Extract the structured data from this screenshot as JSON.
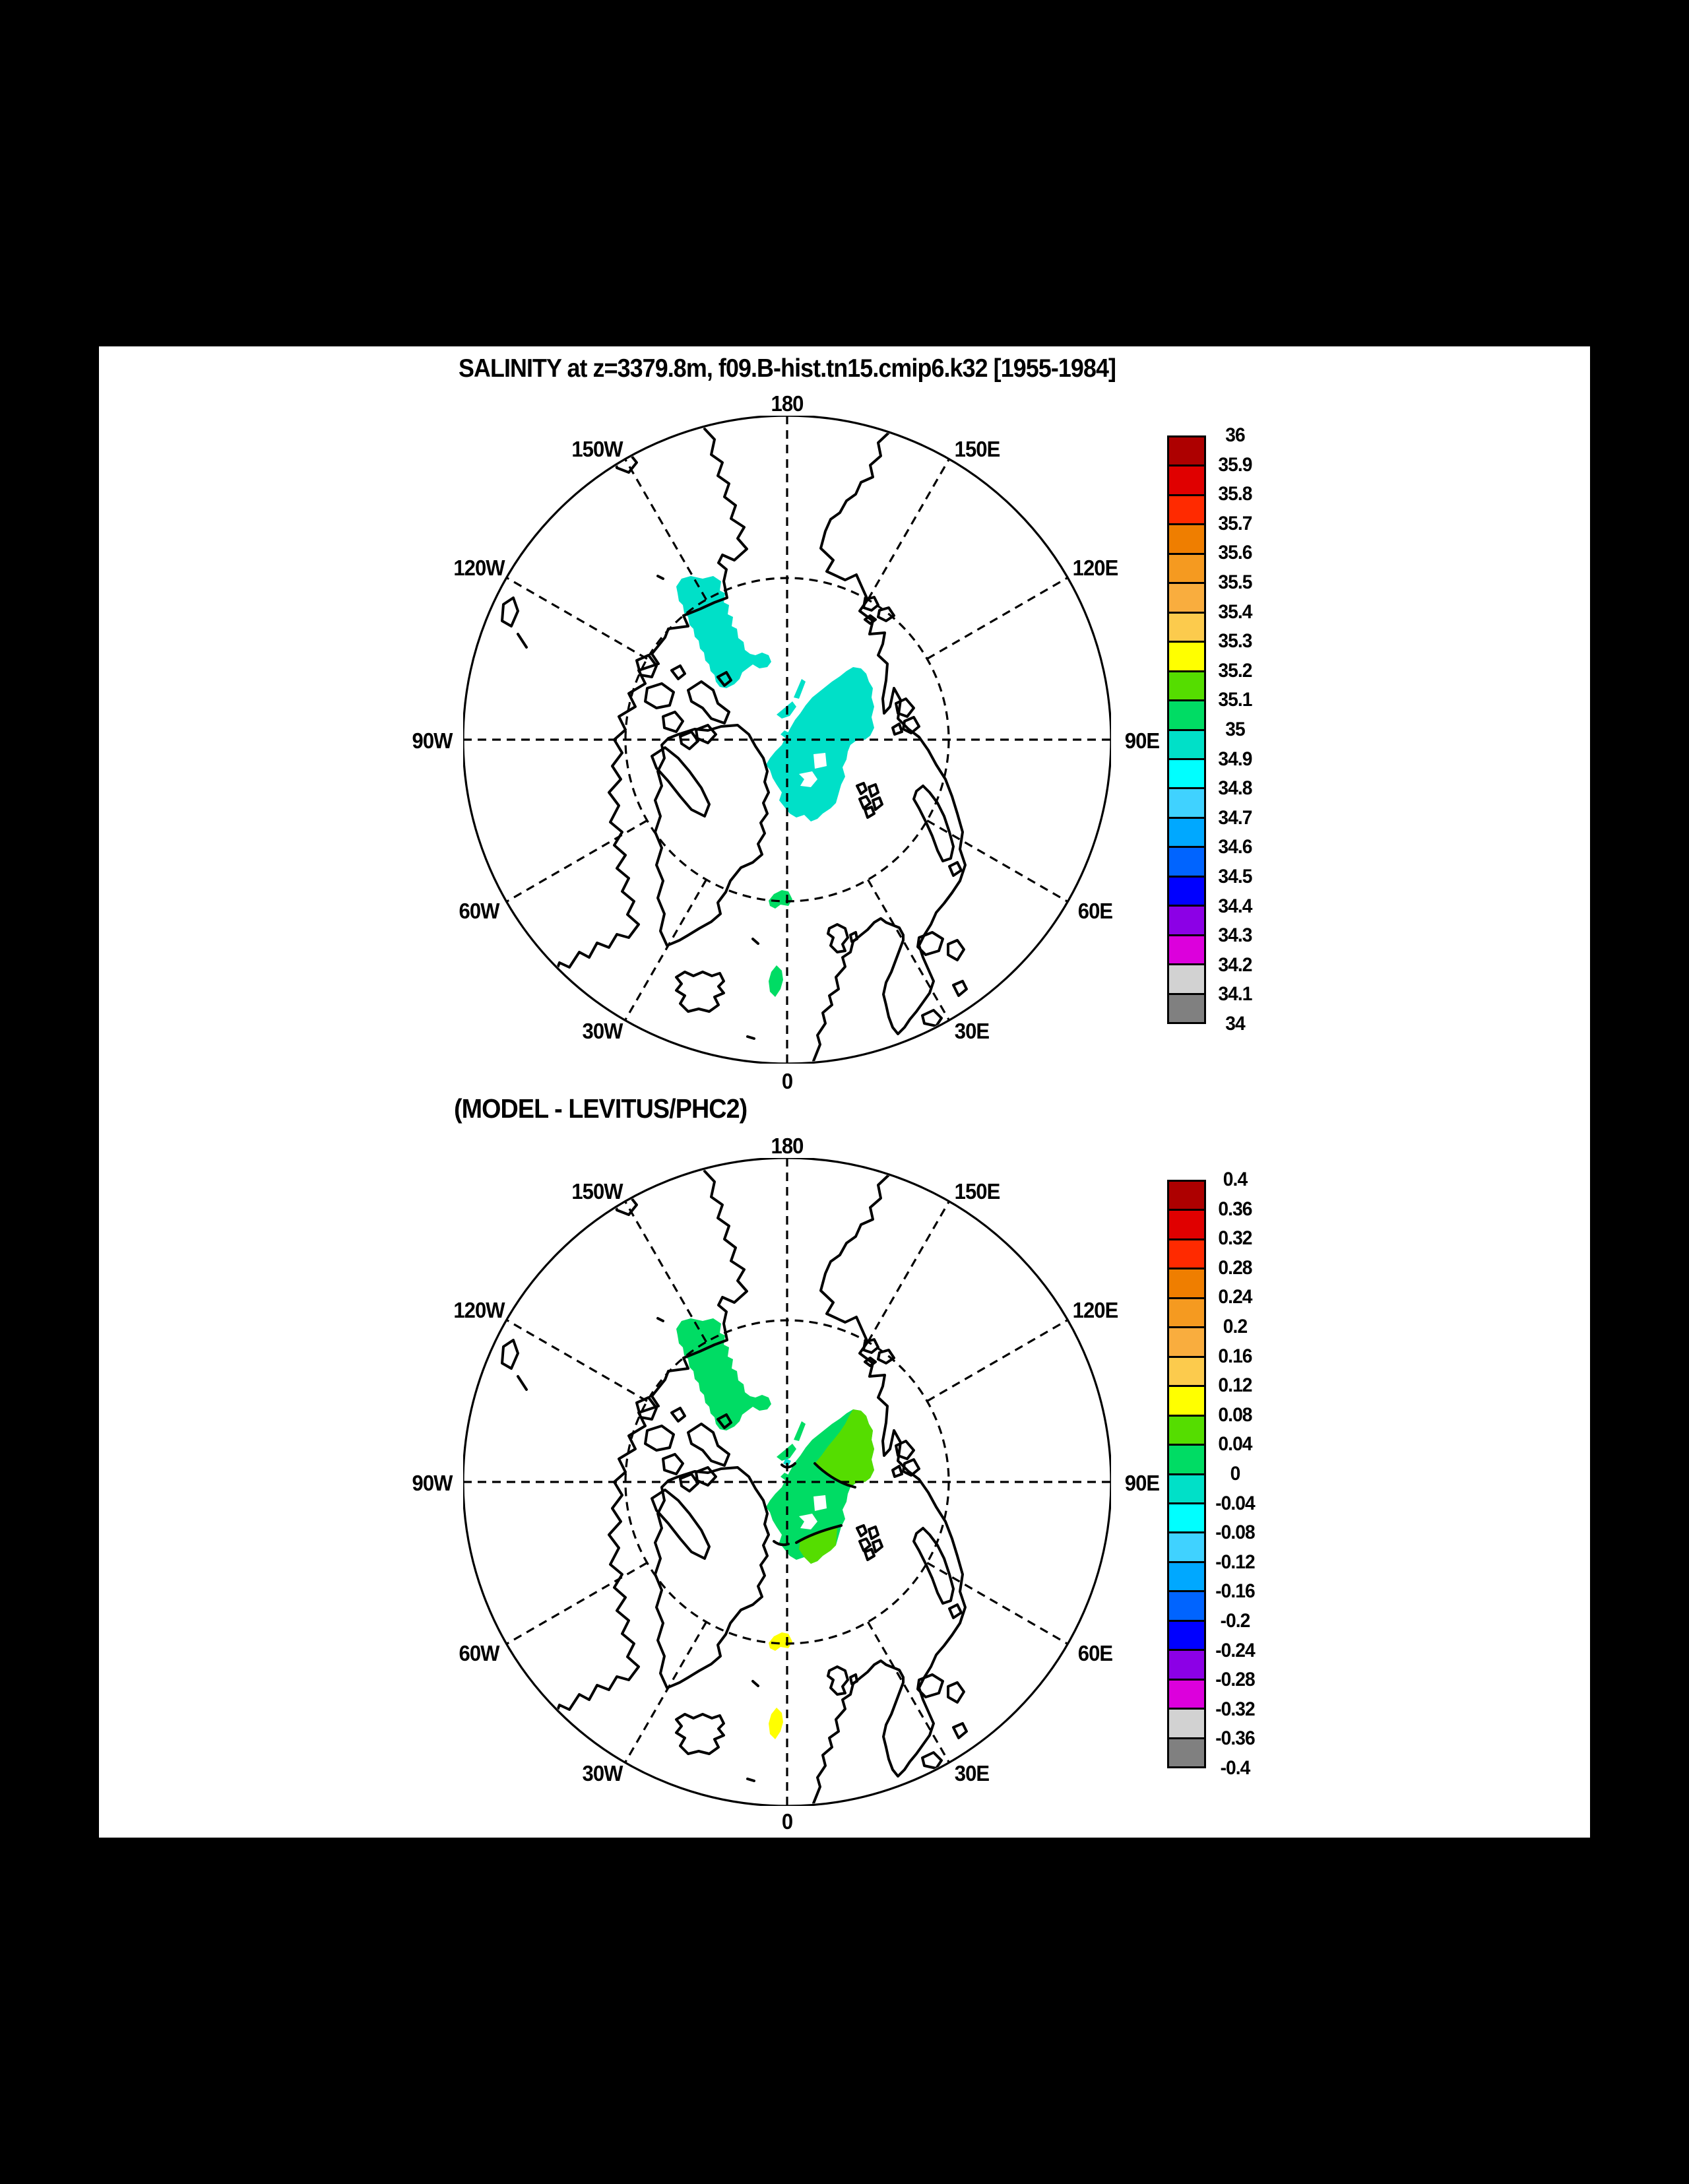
{
  "page": {
    "background": "#000000",
    "panel_background": "#ffffff"
  },
  "palette": {
    "turquoise": "#00e0c8",
    "spring_green": "#00dc64",
    "yellow_green": "#55dd00",
    "yellow": "#ffff00",
    "contour_black": "#000000"
  },
  "panels": [
    {
      "title": "SALINITY at z=3379.8m, f09.B-hist.tn15.cmip6.k32 [1955-1984]",
      "meridians": {
        "m180": "180",
        "m150w": "150W",
        "m150e": "150E",
        "m120w": "120W",
        "m120e": "120E",
        "m90w": "90W",
        "m90e": "90E",
        "m60w": "60W",
        "m60e": "60E",
        "m30w": "30W",
        "m30e": "30E",
        "m0": "0"
      },
      "colorbar": {
        "labels": [
          "36",
          "35.9",
          "35.8",
          "35.7",
          "35.6",
          "35.5",
          "35.4",
          "35.3",
          "35.2",
          "35.1",
          "35",
          "34.9",
          "34.8",
          "34.7",
          "34.6",
          "34.5",
          "34.4",
          "34.3",
          "34.2",
          "34.1",
          "34"
        ],
        "colors": [
          "#ad0000",
          "#e00000",
          "#ff2a00",
          "#ef7e00",
          "#f59a20",
          "#f9ad3e",
          "#fccb4d",
          "#ffff00",
          "#55dd00",
          "#00dc64",
          "#00e0c8",
          "#00ffff",
          "#40d2ff",
          "#00a8ff",
          "#0064ff",
          "#0000ff",
          "#8c00e6",
          "#dc00dc",
          "#d2d2d2",
          "#808080"
        ]
      }
    },
    {
      "title": "(MODEL - LEVITUS/PHC2)",
      "meridians": {
        "m180": "180",
        "m150w": "150W",
        "m150e": "150E",
        "m120w": "120W",
        "m120e": "120E",
        "m90w": "90W",
        "m90e": "90E",
        "m60w": "60W",
        "m60e": "60E",
        "m30w": "30W",
        "m30e": "30E",
        "m0": "0"
      },
      "colorbar": {
        "labels": [
          "0.4",
          "0.36",
          "0.32",
          "0.28",
          "0.24",
          "0.2",
          "0.16",
          "0.12",
          "0.08",
          "0.04",
          "0",
          "-0.04",
          "-0.08",
          "-0.12",
          "-0.16",
          "-0.2",
          "-0.24",
          "-0.28",
          "-0.32",
          "-0.36",
          "-0.4"
        ],
        "colors": [
          "#ad0000",
          "#e00000",
          "#ff2a00",
          "#ef7e00",
          "#f59a20",
          "#f9ad3e",
          "#fccb4d",
          "#ffff00",
          "#55dd00",
          "#00dc64",
          "#00e0c8",
          "#00ffff",
          "#40d2ff",
          "#00a8ff",
          "#0064ff",
          "#0000ff",
          "#8c00e6",
          "#dc00dc",
          "#d2d2d2",
          "#808080"
        ]
      }
    }
  ],
  "chart_data": [
    {
      "type": "heatmap",
      "projection": "north-polar, 180 at top, outer boundary 50N, dashed circle 70N, meridians every 30 degrees",
      "title": "SALINITY at z=3379.8m, f09.B-hist.tn15.cmip6.k32 [1955-1984]",
      "variable": "sea salinity (psu) at depth 3379.8 m",
      "colorbar_levels": [
        34,
        34.1,
        34.2,
        34.3,
        34.4,
        34.5,
        34.6,
        34.7,
        34.8,
        34.9,
        35,
        35.1,
        35.2,
        35.3,
        35.4,
        35.5,
        35.6,
        35.7,
        35.8,
        35.9,
        36
      ],
      "legend_position": "right",
      "shaded_regions": [
        {
          "name": "beaufort-basin-patch",
          "approx_value": "34.9-35",
          "color": "#00e0c8"
        },
        {
          "name": "central-arctic-basin-patch",
          "approx_value": "34.9-35",
          "color": "#00e0c8"
        },
        {
          "name": "pole-slivers",
          "approx_value": "34.9-35",
          "color": "#00e0c8"
        },
        {
          "name": "greenland-sea-spot-north",
          "approx_value": "35-35.1",
          "color": "#00dc64"
        },
        {
          "name": "greenland-sea-spot-south",
          "approx_value": "35-35.1",
          "color": "#00dc64"
        }
      ]
    },
    {
      "type": "heatmap",
      "projection": "north-polar, 180 at top, outer boundary 50N, dashed circle 70N, meridians every 30 degrees",
      "title": "(MODEL - LEVITUS/PHC2)",
      "variable": "salinity difference model minus Levitus/PHC2 (psu)",
      "colorbar_levels": [
        -0.4,
        -0.36,
        -0.32,
        -0.28,
        -0.24,
        -0.2,
        -0.16,
        -0.12,
        -0.08,
        -0.04,
        0,
        0.04,
        0.08,
        0.12,
        0.16,
        0.2,
        0.24,
        0.28,
        0.32,
        0.36,
        0.4
      ],
      "legend_position": "right",
      "shaded_regions": [
        {
          "name": "beaufort-basin-patch",
          "approx_value": "0-0.04",
          "color": "#00dc64"
        },
        {
          "name": "central-arctic-upper-lobe",
          "approx_value": "0.04-0.08",
          "color": "#55dd00"
        },
        {
          "name": "central-arctic-lower-lobe",
          "approx_value": "0-0.04",
          "color": "#00dc64"
        },
        {
          "name": "central-arctic-bottom-tip",
          "approx_value": "0.04-0.08",
          "color": "#55dd00"
        },
        {
          "name": "pole-sliver-dot",
          "approx_value": "-0.04-0",
          "color": "#00e0c8"
        },
        {
          "name": "norwegian-sea-spot-north",
          "approx_value": "0.08-0.12",
          "color": "#ffff00"
        },
        {
          "name": "norwegian-sea-spot-south",
          "approx_value": "0.08-0.12",
          "color": "#ffff00"
        },
        {
          "name": "zero-contour-lines",
          "color": "#000000"
        }
      ]
    }
  ]
}
